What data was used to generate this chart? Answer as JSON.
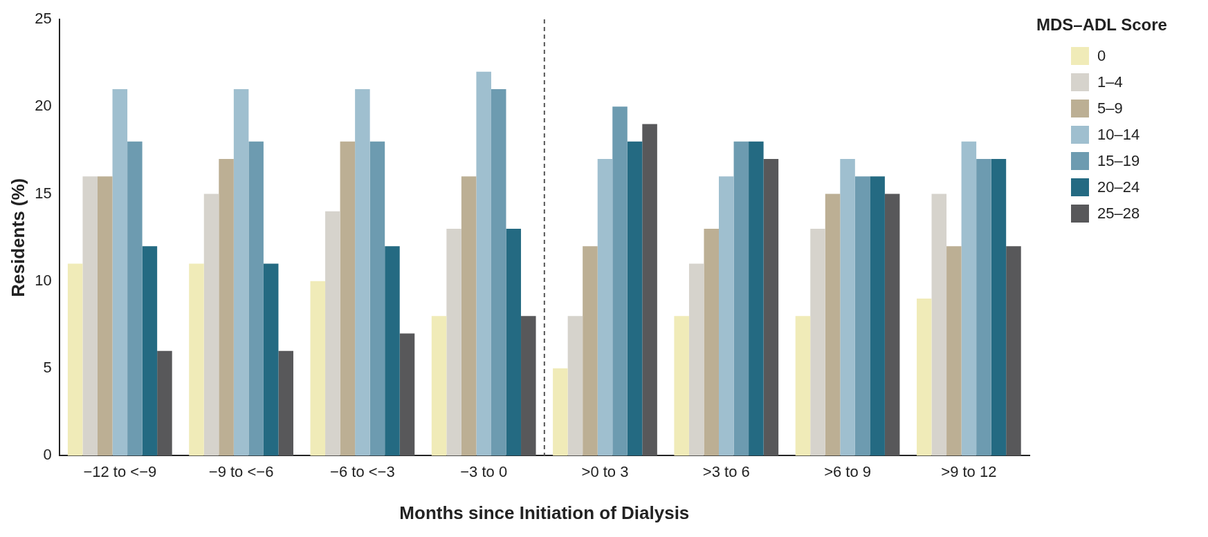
{
  "chart_data": {
    "type": "bar",
    "xlabel": "Months since Initiation of Dialysis",
    "ylabel": "Residents (%)",
    "legend_title": "MDS–ADL Score",
    "categories": [
      "−12 to <−9",
      "−9 to <−6",
      "−6 to <−3",
      "−3 to 0",
      ">0 to 3",
      ">3 to 6",
      ">6 to 9",
      ">9 to 12"
    ],
    "series": [
      {
        "name": "0",
        "color": "#f0ebb8",
        "values": [
          11,
          11,
          10,
          8,
          5,
          8,
          8,
          9
        ]
      },
      {
        "name": "1–4",
        "color": "#d6d3cc",
        "values": [
          16,
          15,
          14,
          13,
          8,
          11,
          13,
          15
        ]
      },
      {
        "name": "5–9",
        "color": "#bcaf94",
        "values": [
          16,
          17,
          18,
          16,
          12,
          13,
          15,
          12
        ]
      },
      {
        "name": "10–14",
        "color": "#9fbfcf",
        "values": [
          21,
          21,
          21,
          22,
          17,
          16,
          17,
          18
        ]
      },
      {
        "name": "15–19",
        "color": "#6d9bb0",
        "values": [
          18,
          18,
          18,
          21,
          20,
          18,
          16,
          17
        ]
      },
      {
        "name": "20–24",
        "color": "#246a82",
        "values": [
          12,
          11,
          12,
          13,
          18,
          18,
          16,
          17
        ]
      },
      {
        "name": "25–28",
        "color": "#58585a",
        "values": [
          6,
          6,
          7,
          8,
          19,
          17,
          15,
          12
        ]
      }
    ],
    "ylim": [
      0,
      25
    ],
    "yticks": [
      0,
      5,
      10,
      15,
      20,
      25
    ],
    "grid": false,
    "legend": "right"
  }
}
